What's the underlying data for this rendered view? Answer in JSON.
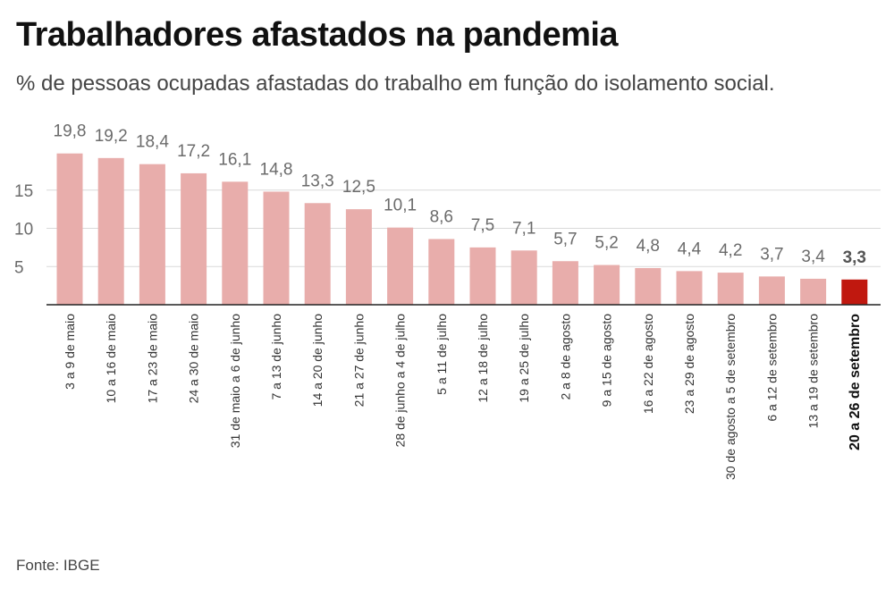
{
  "title": "Trabalhadores afastados na pandemia",
  "subtitle": "% de pessoas ocupadas afastadas do trabalho em função do isolamento social.",
  "source": "Fonte: IBGE",
  "colors": {
    "bar": "#e8adab",
    "highlight": "#c0180f",
    "label": "#6b6b6b",
    "grid": "#d9d9d9",
    "axis": "#222222"
  },
  "chart_data": {
    "type": "bar",
    "categories": [
      "3 a 9 de maio",
      "10 a 16 de maio",
      "17 a 23 de maio",
      "24 a 30 de maio",
      "31 de maio a 6 de junho",
      "7 a 13 de junho",
      "14 a 20 de junho",
      "21 a 27 de junho",
      "28 de junho a 4 de julho",
      "5 a 11 de julho",
      "12 a 18 de julho",
      "19 a 25 de julho",
      "2 a 8 de agosto",
      "9 a 15 de agosto",
      "16 a 22 de agosto",
      "23 a 29 de agosto",
      "30 de agosto a 5 de setembro",
      "6 a 12 de setembro",
      "13 a 19 de setembro",
      "20 a 26 de setembro"
    ],
    "values": [
      19.8,
      19.2,
      18.4,
      17.2,
      16.1,
      14.8,
      13.3,
      12.5,
      10.1,
      8.6,
      7.5,
      7.1,
      5.7,
      5.2,
      4.8,
      4.4,
      4.2,
      3.7,
      3.4,
      3.3
    ],
    "value_labels": [
      "19,8",
      "19,2",
      "18,4",
      "17,2",
      "16,1",
      "14,8",
      "13,3",
      "12,5",
      "10,1",
      "8,6",
      "7,5",
      "7,1",
      "5,7",
      "5,2",
      "4,8",
      "4,4",
      "4,2",
      "3,7",
      "3,4",
      "3,3"
    ],
    "highlight_index": 19,
    "yticks": [
      5,
      10,
      15
    ],
    "ylim": [
      0,
      20
    ],
    "grid": true,
    "xlabel": "",
    "ylabel": ""
  }
}
